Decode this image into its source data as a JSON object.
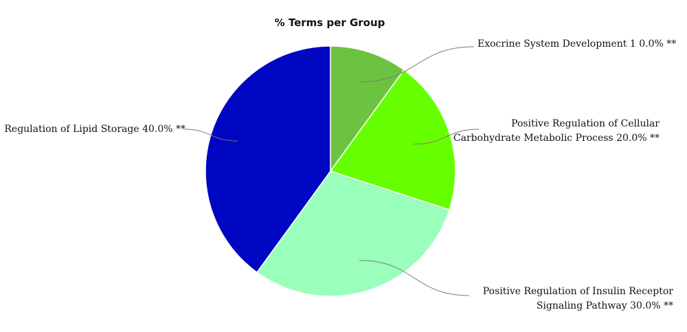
{
  "chart_data": {
    "type": "pie",
    "title": "% Terms per Group",
    "slices": [
      {
        "label_lines": [
          "Exocrine System Development 1 0.0% **"
        ],
        "value": 10,
        "color": "#6cc33f"
      },
      {
        "label_lines": [
          "Positive Regulation of Cellular",
          "Carbohydrate Metabolic Process 20.0% **"
        ],
        "value": 20,
        "color": "#66ff00"
      },
      {
        "label_lines": [
          "Positive Regulation of Insulin Receptor",
          "Signaling Pathway 30.0%  **"
        ],
        "value": 30,
        "color": "#99ffbb"
      },
      {
        "label_lines": [
          "Regulation of Lipid Storage 40.0% **"
        ],
        "value": 40,
        "color": "#0007c2"
      }
    ]
  }
}
